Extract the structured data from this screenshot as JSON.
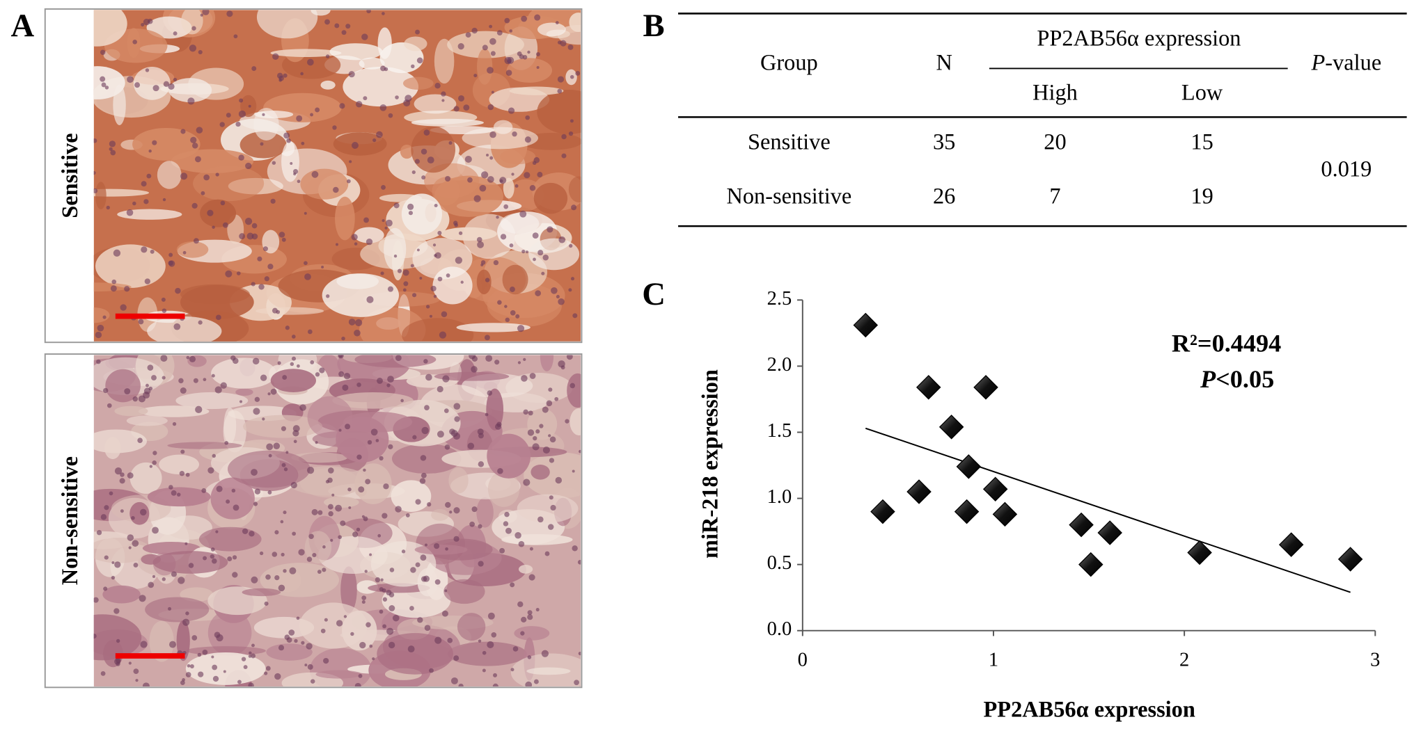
{
  "panel_labels": [
    "A",
    "B",
    "C"
  ],
  "panel_a": {
    "labels": [
      "Sensitive",
      "Non-sensitive"
    ]
  },
  "table": {
    "header": {
      "group": "Group",
      "n": "N",
      "expression": "PP2AB56α expression",
      "high": "High",
      "low": "Low",
      "p_symbol": "P",
      "p_text": "-value"
    },
    "rows": [
      [
        "Sensitive",
        35,
        20,
        15
      ],
      [
        "Non-sensitive",
        26,
        7,
        19
      ]
    ],
    "p_value": "0.019"
  },
  "chart_data": {
    "type": "scatter",
    "x_label": "PP2AB56α expression",
    "y_label": "miR-218 expression",
    "annotation": {
      "r2": "R²=0.4494",
      "p_symbol": "P",
      "p_text": "<0.05"
    },
    "x": [
      0.33,
      0.66,
      0.96,
      0.78,
      0.87,
      0.61,
      1.01,
      0.42,
      0.86,
      1.06,
      1.46,
      1.61,
      1.51,
      2.08,
      2.56,
      2.87
    ],
    "values": [
      2.31,
      1.84,
      1.84,
      1.54,
      1.24,
      1.05,
      1.07,
      0.9,
      0.9,
      0.88,
      0.8,
      0.74,
      0.5,
      0.59,
      0.65,
      0.54
    ],
    "color": "#000000",
    "trendline": {
      "x": [
        0.33,
        2.87
      ],
      "y": [
        1.53,
        0.29
      ]
    },
    "xlim": [
      0,
      3
    ],
    "xticks": [
      0,
      1,
      2,
      3
    ],
    "ylim": [
      0,
      2.5
    ],
    "yticks": [
      {
        "value": 0,
        "label": "0.0"
      },
      0.5,
      {
        "value": 1,
        "label": "1.0"
      },
      1.5,
      {
        "value": 2,
        "label": "2.0"
      },
      2.5
    ]
  }
}
